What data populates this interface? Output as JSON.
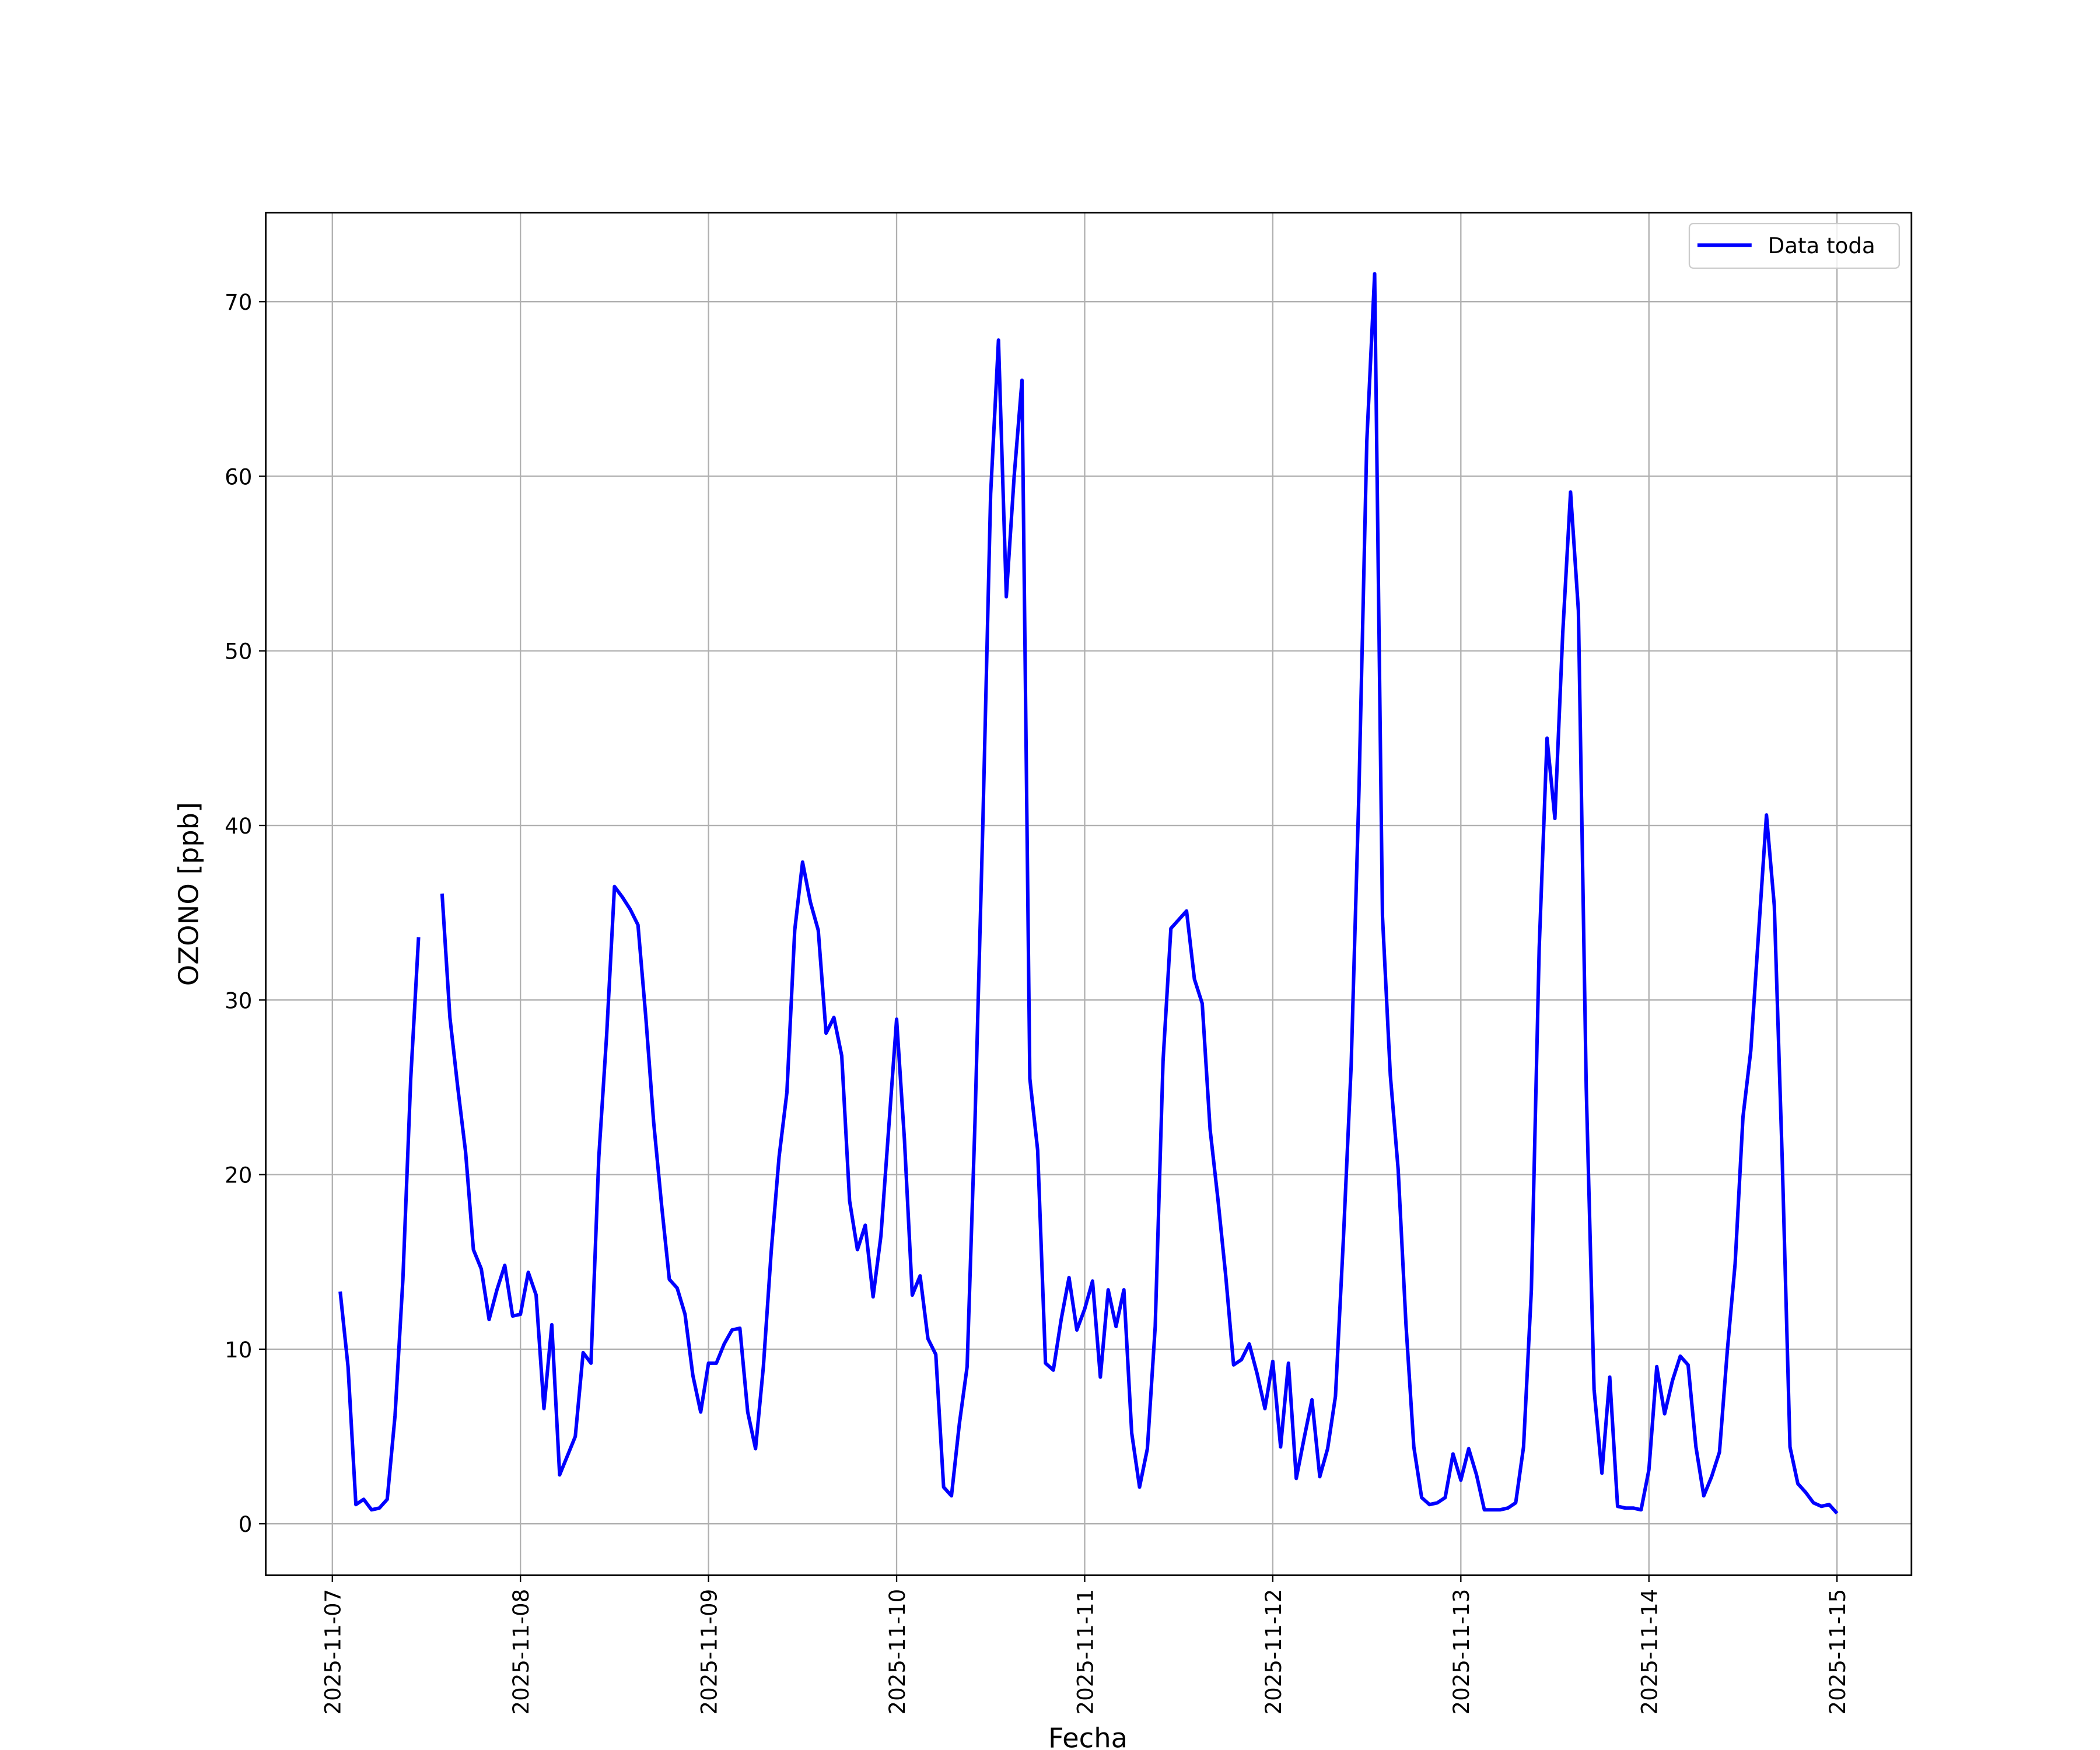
{
  "chart_data": {
    "type": "line",
    "xlabel": "Fecha",
    "ylabel": "OZONO [ppb]",
    "x": [
      "2025-11-07 01:00",
      "2025-11-07 02:00",
      "2025-11-07 03:00",
      "2025-11-07 04:00",
      "2025-11-07 05:00",
      "2025-11-07 06:00",
      "2025-11-07 07:00",
      "2025-11-07 08:00",
      "2025-11-07 09:00",
      "2025-11-07 10:00",
      "2025-11-07 11:00",
      "2025-11-07 12:00",
      "2025-11-07 13:00",
      "2025-11-07 14:00",
      "2025-11-07 15:00",
      "2025-11-07 16:00",
      "2025-11-07 17:00",
      "2025-11-07 18:00",
      "2025-11-07 19:00",
      "2025-11-07 20:00",
      "2025-11-07 21:00",
      "2025-11-07 22:00",
      "2025-11-07 23:00",
      "2025-11-08 00:00",
      "2025-11-08 01:00",
      "2025-11-08 02:00",
      "2025-11-08 03:00",
      "2025-11-08 04:00",
      "2025-11-08 05:00",
      "2025-11-08 06:00",
      "2025-11-08 07:00",
      "2025-11-08 08:00",
      "2025-11-08 09:00",
      "2025-11-08 10:00",
      "2025-11-08 11:00",
      "2025-11-08 12:00",
      "2025-11-08 13:00",
      "2025-11-08 14:00",
      "2025-11-08 15:00",
      "2025-11-08 16:00",
      "2025-11-08 17:00",
      "2025-11-08 18:00",
      "2025-11-08 19:00",
      "2025-11-08 20:00",
      "2025-11-08 21:00",
      "2025-11-08 22:00",
      "2025-11-08 23:00",
      "2025-11-09 00:00",
      "2025-11-09 01:00",
      "2025-11-09 02:00",
      "2025-11-09 03:00",
      "2025-11-09 04:00",
      "2025-11-09 05:00",
      "2025-11-09 06:00",
      "2025-11-09 07:00",
      "2025-11-09 08:00",
      "2025-11-09 09:00",
      "2025-11-09 10:00",
      "2025-11-09 11:00",
      "2025-11-09 12:00",
      "2025-11-09 13:00",
      "2025-11-09 14:00",
      "2025-11-09 15:00",
      "2025-11-09 16:00",
      "2025-11-09 17:00",
      "2025-11-09 18:00",
      "2025-11-09 19:00",
      "2025-11-09 20:00",
      "2025-11-09 21:00",
      "2025-11-09 22:00",
      "2025-11-09 23:00",
      "2025-11-10 00:00",
      "2025-11-10 01:00",
      "2025-11-10 02:00",
      "2025-11-10 03:00",
      "2025-11-10 04:00",
      "2025-11-10 05:00",
      "2025-11-10 06:00",
      "2025-11-10 07:00",
      "2025-11-10 08:00",
      "2025-11-10 09:00",
      "2025-11-10 10:00",
      "2025-11-10 11:00",
      "2025-11-10 12:00",
      "2025-11-10 13:00",
      "2025-11-10 14:00",
      "2025-11-10 15:00",
      "2025-11-10 16:00",
      "2025-11-10 17:00",
      "2025-11-10 18:00",
      "2025-11-10 19:00",
      "2025-11-10 20:00",
      "2025-11-10 21:00",
      "2025-11-10 22:00",
      "2025-11-10 23:00",
      "2025-11-11 00:00",
      "2025-11-11 01:00",
      "2025-11-11 02:00",
      "2025-11-11 03:00",
      "2025-11-11 04:00",
      "2025-11-11 05:00",
      "2025-11-11 06:00",
      "2025-11-11 07:00",
      "2025-11-11 08:00",
      "2025-11-11 09:00",
      "2025-11-11 10:00",
      "2025-11-11 11:00",
      "2025-11-11 12:00",
      "2025-11-11 13:00",
      "2025-11-11 14:00",
      "2025-11-11 15:00",
      "2025-11-11 16:00",
      "2025-11-11 17:00",
      "2025-11-11 18:00",
      "2025-11-11 19:00",
      "2025-11-11 20:00",
      "2025-11-11 21:00",
      "2025-11-11 22:00",
      "2025-11-11 23:00",
      "2025-11-12 00:00",
      "2025-11-12 01:00",
      "2025-11-12 02:00",
      "2025-11-12 03:00",
      "2025-11-12 04:00",
      "2025-11-12 05:00",
      "2025-11-12 06:00",
      "2025-11-12 07:00",
      "2025-11-12 08:00",
      "2025-11-12 09:00",
      "2025-11-12 10:00",
      "2025-11-12 11:00",
      "2025-11-12 12:00",
      "2025-11-12 13:00",
      "2025-11-12 14:00",
      "2025-11-12 15:00",
      "2025-11-12 16:00",
      "2025-11-12 17:00",
      "2025-11-12 18:00",
      "2025-11-12 19:00",
      "2025-11-12 20:00",
      "2025-11-12 21:00",
      "2025-11-12 22:00",
      "2025-11-12 23:00",
      "2025-11-13 00:00",
      "2025-11-13 01:00",
      "2025-11-13 02:00",
      "2025-11-13 03:00",
      "2025-11-13 04:00",
      "2025-11-13 05:00",
      "2025-11-13 06:00",
      "2025-11-13 07:00",
      "2025-11-13 08:00",
      "2025-11-13 09:00",
      "2025-11-13 10:00",
      "2025-11-13 11:00",
      "2025-11-13 12:00",
      "2025-11-13 13:00",
      "2025-11-13 14:00",
      "2025-11-13 15:00",
      "2025-11-13 16:00",
      "2025-11-13 17:00",
      "2025-11-13 18:00",
      "2025-11-13 19:00",
      "2025-11-13 20:00",
      "2025-11-13 21:00",
      "2025-11-13 22:00",
      "2025-11-13 23:00",
      "2025-11-14 00:00",
      "2025-11-14 01:00",
      "2025-11-14 02:00",
      "2025-11-14 03:00",
      "2025-11-14 04:00",
      "2025-11-14 05:00",
      "2025-11-14 06:00",
      "2025-11-14 07:00",
      "2025-11-14 08:00",
      "2025-11-14 09:00",
      "2025-11-14 10:00",
      "2025-11-14 11:00",
      "2025-11-14 12:00",
      "2025-11-14 13:00",
      "2025-11-14 14:00",
      "2025-11-14 15:00",
      "2025-11-14 16:00",
      "2025-11-14 17:00",
      "2025-11-14 18:00",
      "2025-11-14 19:00",
      "2025-11-14 20:00",
      "2025-11-14 21:00",
      "2025-11-14 22:00",
      "2025-11-14 23:00",
      "2025-11-15 00:00"
    ],
    "series": [
      {
        "name": "Data toda",
        "color": "#0000ff",
        "values": [
          13.3,
          9,
          1.1,
          1.4,
          0.8,
          0.9,
          1.4,
          6.2,
          14,
          25.5,
          33.6,
          null,
          null,
          36.1,
          29,
          25,
          21.3,
          15.7,
          14.6,
          11.7,
          13.4,
          14.8,
          11.9,
          12,
          14.4,
          13.1,
          6.6,
          11.4,
          2.8,
          3.9,
          5,
          9.8,
          9.2,
          21,
          28,
          36.5,
          35.9,
          35.2,
          34.3,
          29,
          23,
          18.3,
          14,
          13.5,
          12,
          8.5,
          6.4,
          9.2,
          9.2,
          10.3,
          11.1,
          11.2,
          6.4,
          4.3,
          9,
          15.6,
          21,
          24.7,
          34,
          37.9,
          35.6,
          34,
          28.1,
          29,
          26.8,
          18.5,
          15.7,
          17.1,
          13,
          16.5,
          22.7,
          28.9,
          22,
          13.1,
          14.2,
          10.6,
          9.7,
          2.1,
          1.6,
          5.7,
          9,
          23,
          40,
          59,
          67.8,
          53.1,
          60,
          65.5,
          25.5,
          21.4,
          9.2,
          8.8,
          11.7,
          14.1,
          11.1,
          12.3,
          13.9,
          8.4,
          13.4,
          11.3,
          13.4,
          5.2,
          2.1,
          4.3,
          11.3,
          26.5,
          34.1,
          34.6,
          35.1,
          31.2,
          29.8,
          22.6,
          18.6,
          14.2,
          9.1,
          9.4,
          10.3,
          8.6,
          6.6,
          9.3,
          4.4,
          9.2,
          2.6,
          4.9,
          7.1,
          2.7,
          4.3,
          7.3,
          16.2,
          26.2,
          42,
          62,
          71.6,
          34.8,
          25.7,
          20.3,
          11.4,
          4.4,
          1.5,
          1.1,
          1.2,
          1.5,
          4,
          2.5,
          4.3,
          2.8,
          0.8,
          0.8,
          0.8,
          0.9,
          1.2,
          4.4,
          13.4,
          33,
          45,
          40.4,
          51,
          59.1,
          52.3,
          25,
          7.7,
          2.9,
          8.4,
          1,
          0.9,
          0.9,
          0.8,
          3.1,
          9,
          6.3,
          8.2,
          9.6,
          9.1,
          4.4,
          1.6,
          2.7,
          4.1,
          9.9,
          14.9,
          23.3,
          27.1,
          33.9,
          40.6,
          35.4,
          21,
          4.4,
          2.3,
          1.8,
          1.2,
          1,
          1.1,
          0.6
        ]
      }
    ],
    "xlim": [
      "2025-11-06 15:30",
      "2025-11-15 09:30"
    ],
    "xticks": [
      "2025-11-07",
      "2025-11-08",
      "2025-11-09",
      "2025-11-10",
      "2025-11-11",
      "2025-11-12",
      "2025-11-13",
      "2025-11-14",
      "2025-11-15"
    ],
    "ylim": [
      -2.95,
      75.1
    ],
    "yticks": [
      0,
      10,
      20,
      30,
      40,
      50,
      60,
      70
    ],
    "grid": true,
    "legend": "upper right"
  }
}
